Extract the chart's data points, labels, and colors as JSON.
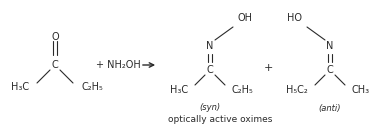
{
  "bg_color": "#ffffff",
  "text_color": "#2a2a2a",
  "figsize": [
    3.87,
    1.3
  ],
  "dpi": 100,
  "ketone_O": "O",
  "ketone_C": "C",
  "ketone_H3C": "H₃C",
  "ketone_C2H5": "C₂H₅",
  "reagent": "+ NH₂OH",
  "syn_N": "N",
  "syn_OH": "OH",
  "syn_C": "C",
  "syn_H3C": "H₃C",
  "syn_C2H5": "C₂H₅",
  "syn_label": "(syn)",
  "plus": "+",
  "anti_HO": "HO",
  "anti_N": "N",
  "anti_C": "C",
  "anti_H5C2": "H₅C₂",
  "anti_CH3": "CH₃",
  "anti_label": "(anti)",
  "bottom_label": "optically active oximes"
}
